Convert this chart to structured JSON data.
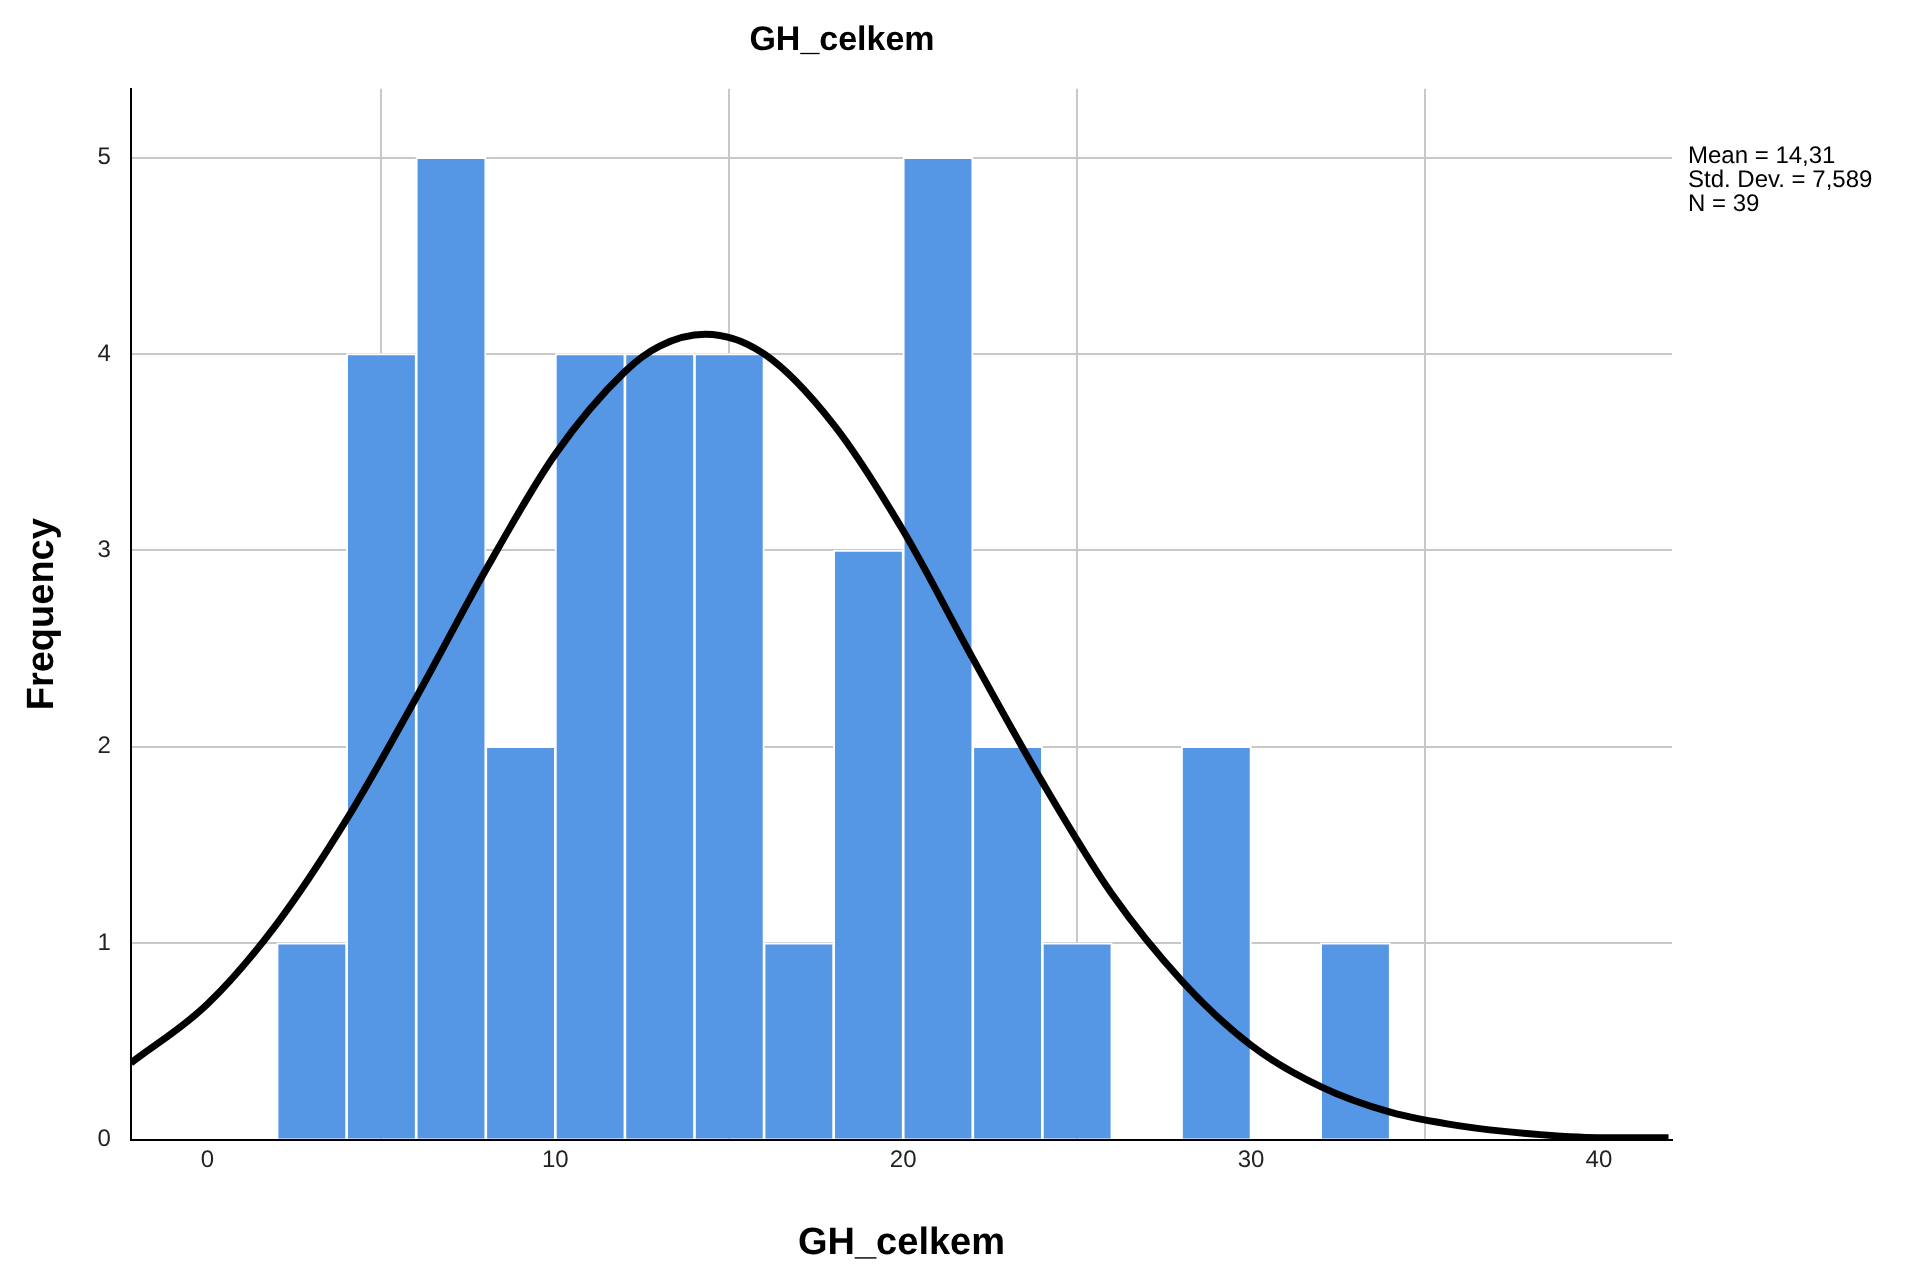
{
  "chart_data": {
    "type": "histogram",
    "title": "GH_celkem",
    "xlabel": "GH_celkem",
    "ylabel": "Frequency",
    "bins": [
      2,
      4,
      6,
      8,
      10,
      12,
      14,
      16,
      18,
      20,
      22,
      24,
      26,
      28,
      30,
      32,
      34
    ],
    "values": [
      1,
      4,
      5,
      2,
      4,
      4,
      4,
      1,
      3,
      5,
      2,
      1,
      0,
      2,
      0,
      1
    ],
    "color": "#5596e5",
    "series": [
      {
        "type": "line",
        "color": "#000000",
        "x": [
          -2.2,
          0,
          2,
          4,
          6,
          8,
          10,
          12,
          13,
          14.31,
          16,
          18,
          20,
          22,
          24,
          26,
          28,
          30,
          32,
          34,
          36,
          38,
          40,
          42
        ],
        "values": [
          0.39,
          0.69,
          1.1,
          1.63,
          2.25,
          2.9,
          3.49,
          3.91,
          4.04,
          4.1,
          4,
          3.64,
          3.1,
          2.45,
          1.82,
          1.25,
          0.81,
          0.48,
          0.27,
          0.14,
          0.07,
          0.03,
          0.01,
          0.01
        ]
      }
    ],
    "xlim": [
      -2.2,
      42.1
    ],
    "xticks": [
      0,
      10,
      20,
      30,
      40
    ],
    "ylim": [
      0,
      5.35
    ],
    "yticks": [
      0,
      1,
      2,
      3,
      4,
      5
    ],
    "grid": true,
    "legend": false,
    "marker": "none",
    "line_style": "solid",
    "annotations": [
      "Mean = 14,31",
      "Std. Dev. = 7,589",
      "N = 39"
    ]
  }
}
